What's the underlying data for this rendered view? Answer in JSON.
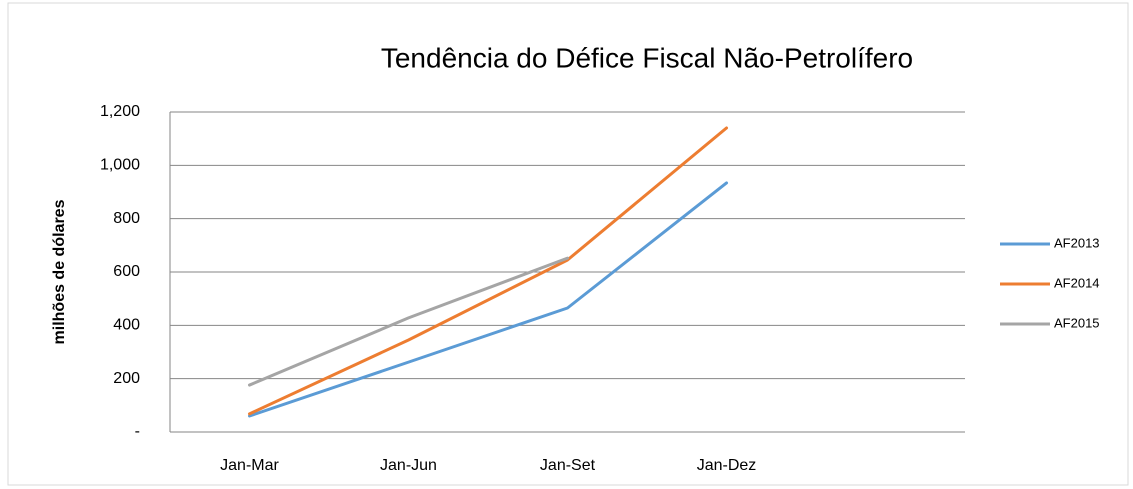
{
  "chart_data": {
    "type": "line",
    "title": "Tendência do Défice Fiscal Não-Petrolífero",
    "y_label": "milhões de dólares",
    "categories": [
      "Jan-Mar",
      "Jan-Jun",
      "Jan-Set",
      "Jan-Dez",
      null
    ],
    "series": [
      {
        "name": "AF2013",
        "color": "#5b9bd5",
        "values": [
          60,
          262,
          465,
          934,
          null
        ]
      },
      {
        "name": "AF2014",
        "color": "#ed7d31",
        "values": [
          68,
          345,
          645,
          1140,
          null
        ]
      },
      {
        "name": "AF2015",
        "color": "#a5a5a5",
        "values": [
          176,
          428,
          652,
          null,
          null
        ]
      }
    ],
    "ylim": [
      0,
      1200
    ],
    "yticks": [
      {
        "value": 0,
        "label": "-"
      },
      200,
      400,
      600,
      800,
      {
        "value": 1000,
        "label": "1,000"
      },
      {
        "value": 1200,
        "label": "1,200"
      }
    ],
    "grid": true,
    "legend": "right"
  }
}
